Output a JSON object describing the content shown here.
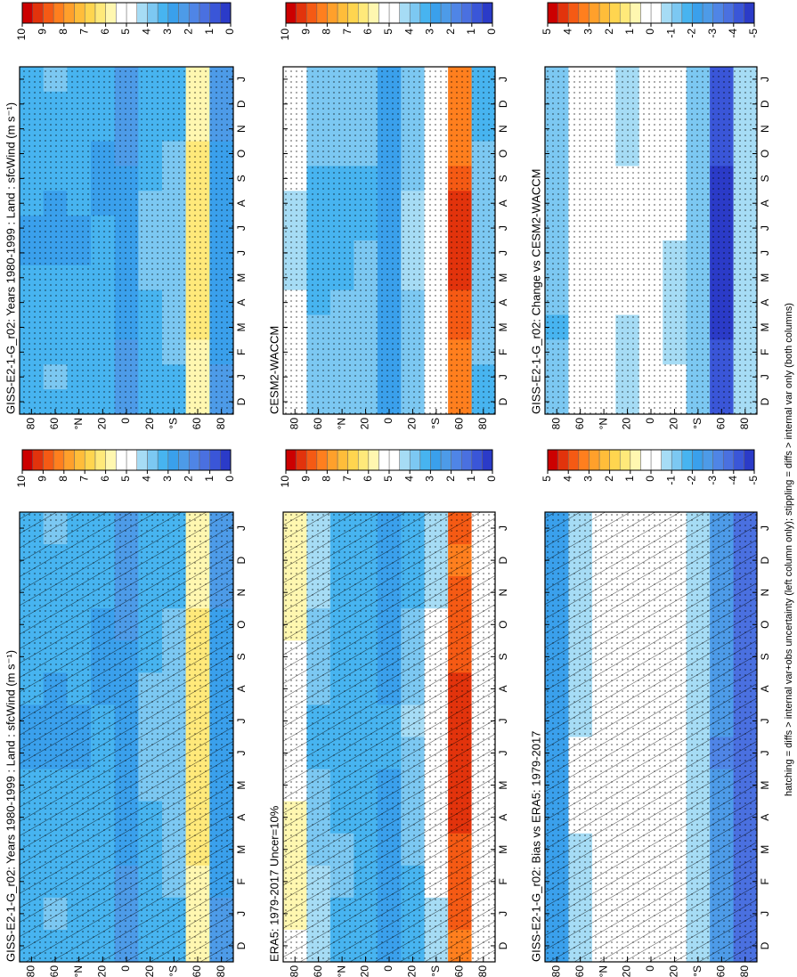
{
  "footnote": "hatching = diffs > internal var+obs uncertainty (left column only); stippling = diffs > internal var only (both columns)",
  "palette": [
    "#2b3bc8",
    "#3a56d8",
    "#4a70e0",
    "#4f85e6",
    "#4d9be8",
    "#3aa0ec",
    "#47b4f0",
    "#7cc8f2",
    "#a6dcf5",
    "#ffffff",
    "#ffffff",
    "#fff7b0",
    "#ffe97a",
    "#ffd54f",
    "#ffbd3a",
    "#ffa02b",
    "#ff7f1e",
    "#f55a14",
    "#e2330c",
    "#cc0000"
  ],
  "chart_data": [
    {
      "type": "heatmap",
      "title": "GISS-E2-1-G_r02: Years 1980-1999 : Land : sfcWind (m s⁻¹)",
      "hatch": true,
      "x": [
        "D",
        "J",
        "F",
        "M",
        "A",
        "M",
        "J",
        "J",
        "A",
        "S",
        "O",
        "N",
        "D",
        "J"
      ],
      "y": [
        80,
        60,
        40,
        20,
        0,
        -20,
        -40,
        -60,
        -80
      ],
      "ylim": [
        90,
        -90
      ],
      "yticks": [
        80,
        60,
        {
          "value": 40,
          "label": "°N"
        },
        20,
        0,
        {
          "value": -20,
          "label": "20"
        },
        {
          "value": -40,
          "label": "°S"
        },
        {
          "value": -60,
          "label": "60"
        },
        {
          "value": -80,
          "label": "80"
        }
      ],
      "zlim": [
        0,
        10
      ],
      "zticks": [
        10,
        9,
        8,
        7,
        6,
        5,
        4,
        3,
        2,
        1,
        0
      ],
      "z": [
        [
          3.2,
          3.3,
          3.3,
          3.2,
          3.1,
          3.0,
          2.9,
          2.9,
          3.0,
          3.1,
          3.2,
          3.3,
          3.2,
          3.3
        ],
        [
          3.4,
          3.5,
          3.4,
          3.3,
          3.2,
          3.0,
          2.9,
          2.8,
          2.9,
          3.1,
          3.3,
          3.4,
          3.4,
          3.5
        ],
        [
          3.2,
          3.3,
          3.4,
          3.4,
          3.3,
          3.1,
          2.9,
          2.9,
          3.0,
          3.1,
          3.2,
          3.2,
          3.2,
          3.3
        ],
        [
          3.0,
          3.0,
          3.1,
          3.2,
          3.2,
          3.1,
          3.0,
          3.0,
          2.9,
          2.9,
          2.9,
          3.0,
          3.0,
          3.0
        ],
        [
          2.4,
          2.4,
          2.4,
          2.5,
          2.5,
          2.6,
          2.7,
          2.7,
          2.6,
          2.5,
          2.4,
          2.4,
          2.4,
          2.4
        ],
        [
          3.0,
          3.0,
          3.0,
          3.1,
          3.3,
          3.5,
          3.6,
          3.7,
          3.6,
          3.4,
          3.2,
          3.1,
          3.0,
          3.0
        ],
        [
          3.4,
          3.4,
          3.5,
          3.6,
          3.7,
          3.8,
          3.8,
          3.8,
          3.7,
          3.6,
          3.5,
          3.4,
          3.4,
          3.4
        ],
        [
          5.8,
          5.8,
          5.9,
          6.0,
          6.1,
          6.2,
          6.2,
          6.3,
          6.2,
          6.1,
          6.0,
          5.9,
          5.8,
          5.8
        ],
        [
          2.4,
          2.4,
          2.5,
          2.5,
          2.6,
          2.6,
          2.6,
          2.6,
          2.6,
          2.5,
          2.5,
          2.4,
          2.4,
          2.4
        ]
      ]
    },
    {
      "type": "heatmap",
      "title": "ERA5: 1979-2017 Uncer=10%",
      "hatch": true,
      "x": [
        "D",
        "J",
        "F",
        "M",
        "A",
        "M",
        "J",
        "J",
        "A",
        "S",
        "O",
        "N",
        "D",
        "J"
      ],
      "y": [
        80,
        60,
        40,
        20,
        0,
        -20,
        -40,
        -60,
        -80
      ],
      "ylim": [
        90,
        -90
      ],
      "yticks": [
        80,
        60,
        {
          "value": 40,
          "label": "°N"
        },
        20,
        0,
        {
          "value": -20,
          "label": "20"
        },
        {
          "value": -40,
          "label": "°S"
        },
        {
          "value": -60,
          "label": "60"
        },
        {
          "value": -80,
          "label": "80"
        }
      ],
      "zlim": [
        0,
        10
      ],
      "zticks": [
        10,
        9,
        8,
        7,
        6,
        5,
        4,
        3,
        2,
        1,
        0
      ],
      "z": [
        [
          5.4,
          5.5,
          5.6,
          5.6,
          5.5,
          5.2,
          5.0,
          5.0,
          5.2,
          5.4,
          5.6,
          5.7,
          5.6,
          5.5
        ],
        [
          4.0,
          4.1,
          4.0,
          3.9,
          3.7,
          3.5,
          3.4,
          3.4,
          3.5,
          3.7,
          3.9,
          4.0,
          4.0,
          4.1
        ],
        [
          3.3,
          3.4,
          3.5,
          3.5,
          3.4,
          3.2,
          3.1,
          3.1,
          3.1,
          3.2,
          3.3,
          3.3,
          3.3,
          3.4
        ],
        [
          3.3,
          3.3,
          3.4,
          3.4,
          3.3,
          3.2,
          3.1,
          3.1,
          3.0,
          3.1,
          3.2,
          3.3,
          3.3,
          3.3
        ],
        [
          2.7,
          2.7,
          2.8,
          2.8,
          2.8,
          2.9,
          3.0,
          3.0,
          2.9,
          2.8,
          2.7,
          2.7,
          2.7,
          2.7
        ],
        [
          3.3,
          3.3,
          3.4,
          3.5,
          3.6,
          3.8,
          3.9,
          4.0,
          3.9,
          3.7,
          3.5,
          3.4,
          3.3,
          3.3
        ],
        [
          4.4,
          4.4,
          4.5,
          4.6,
          4.7,
          4.8,
          4.8,
          4.8,
          4.7,
          4.6,
          4.5,
          4.4,
          4.4,
          4.4
        ],
        [
          8.4,
          8.5,
          8.6,
          8.8,
          9.0,
          9.2,
          9.3,
          9.3,
          9.1,
          8.9,
          8.7,
          8.5,
          8.4,
          8.5
        ],
        [
          5.2,
          5.2,
          5.3,
          5.3,
          5.4,
          5.4,
          5.4,
          5.4,
          5.3,
          5.3,
          5.2,
          5.2,
          5.2,
          5.2
        ]
      ]
    },
    {
      "type": "heatmap",
      "title": "GISS-E2-1-G_r02: Bias vs ERA5: 1979-2017",
      "hatch": true,
      "x": [
        "D",
        "J",
        "F",
        "M",
        "A",
        "M",
        "J",
        "J",
        "A",
        "S",
        "O",
        "N",
        "D",
        "J"
      ],
      "y": [
        80,
        60,
        40,
        20,
        0,
        -20,
        -40,
        -60,
        -80
      ],
      "ylim": [
        90,
        -90
      ],
      "yticks": [
        80,
        60,
        {
          "value": 40,
          "label": "°N"
        },
        20,
        0,
        {
          "value": -20,
          "label": "20"
        },
        {
          "value": -40,
          "label": "°S"
        },
        {
          "value": -60,
          "label": "60"
        },
        {
          "value": -80,
          "label": "80"
        }
      ],
      "zlim": [
        -5,
        5
      ],
      "zticks": [
        5,
        4,
        3,
        2,
        1,
        0,
        -1,
        -2,
        -3,
        -4,
        -5
      ],
      "z": [
        [
          -2.2,
          -2.2,
          -2.3,
          -2.4,
          -2.4,
          -2.2,
          -2.1,
          -2.1,
          -2.2,
          -2.3,
          -2.4,
          -2.4,
          -2.4,
          -2.2
        ],
        [
          -0.6,
          -0.6,
          -0.6,
          -0.6,
          -0.5,
          -0.5,
          -0.5,
          -0.6,
          -0.6,
          -0.6,
          -0.6,
          -0.6,
          -0.6,
          -0.6
        ],
        [
          -0.1,
          -0.1,
          -0.1,
          -0.1,
          -0.1,
          -0.1,
          -0.2,
          -0.2,
          -0.1,
          -0.1,
          0.0,
          -0.1,
          -0.1,
          -0.1
        ],
        [
          -0.3,
          -0.3,
          -0.3,
          -0.2,
          -0.1,
          -0.1,
          -0.1,
          -0.1,
          -0.1,
          -0.2,
          -0.3,
          -0.3,
          -0.3,
          -0.3
        ],
        [
          -0.3,
          -0.3,
          -0.4,
          -0.3,
          -0.3,
          -0.3,
          -0.3,
          -0.3,
          -0.3,
          -0.3,
          -0.3,
          -0.3,
          -0.3,
          -0.3
        ],
        [
          -0.3,
          -0.3,
          -0.4,
          -0.4,
          -0.3,
          -0.3,
          -0.3,
          -0.3,
          -0.3,
          -0.3,
          -0.3,
          -0.3,
          -0.3,
          -0.3
        ],
        [
          -1.0,
          -1.0,
          -1.0,
          -1.0,
          -1.0,
          -1.0,
          -1.0,
          -1.0,
          -1.0,
          -1.0,
          -1.0,
          -1.0,
          -1.0,
          -1.0
        ],
        [
          -2.6,
          -2.7,
          -2.7,
          -2.8,
          -2.9,
          -3.0,
          -3.1,
          -3.0,
          -2.9,
          -2.8,
          -2.7,
          -2.6,
          -2.6,
          -2.7
        ],
        [
          -3.8,
          -3.8,
          -3.9,
          -3.9,
          -4.0,
          -4.0,
          -4.0,
          -4.0,
          -3.9,
          -3.9,
          -3.8,
          -3.8,
          -3.8,
          -3.8
        ]
      ]
    },
    {
      "type": "heatmap",
      "title": "GISS-E2-1-G_r02: Years 1980-1999 : Land : sfcWind (m s⁻¹)",
      "hatch": false,
      "x": [
        "D",
        "J",
        "F",
        "M",
        "A",
        "M",
        "J",
        "J",
        "A",
        "S",
        "O",
        "N",
        "D",
        "J"
      ],
      "y": [
        80,
        60,
        40,
        20,
        0,
        -20,
        -40,
        -60,
        -80
      ],
      "ylim": [
        90,
        -90
      ],
      "yticks": [
        80,
        60,
        {
          "value": 40,
          "label": "°N"
        },
        20,
        0,
        {
          "value": -20,
          "label": "20"
        },
        {
          "value": -40,
          "label": "°S"
        },
        {
          "value": -60,
          "label": "60"
        },
        {
          "value": -80,
          "label": "80"
        }
      ],
      "zlim": [
        0,
        10
      ],
      "zticks": [
        10,
        9,
        8,
        7,
        6,
        5,
        4,
        3,
        2,
        1,
        0
      ],
      "z": [
        [
          3.2,
          3.3,
          3.3,
          3.2,
          3.1,
          3.0,
          2.9,
          2.9,
          3.0,
          3.1,
          3.2,
          3.3,
          3.2,
          3.3
        ],
        [
          3.4,
          3.5,
          3.4,
          3.3,
          3.2,
          3.0,
          2.9,
          2.8,
          2.9,
          3.1,
          3.3,
          3.4,
          3.4,
          3.5
        ],
        [
          3.2,
          3.3,
          3.4,
          3.4,
          3.3,
          3.1,
          2.9,
          2.9,
          3.0,
          3.1,
          3.2,
          3.2,
          3.2,
          3.3
        ],
        [
          3.0,
          3.0,
          3.1,
          3.2,
          3.2,
          3.1,
          3.0,
          3.0,
          2.9,
          2.9,
          2.9,
          3.0,
          3.0,
          3.0
        ],
        [
          2.4,
          2.4,
          2.4,
          2.5,
          2.5,
          2.6,
          2.7,
          2.7,
          2.6,
          2.5,
          2.4,
          2.4,
          2.4,
          2.4
        ],
        [
          3.0,
          3.0,
          3.0,
          3.1,
          3.3,
          3.5,
          3.6,
          3.7,
          3.6,
          3.4,
          3.2,
          3.1,
          3.0,
          3.0
        ],
        [
          3.4,
          3.4,
          3.5,
          3.6,
          3.7,
          3.8,
          3.8,
          3.8,
          3.7,
          3.6,
          3.5,
          3.4,
          3.4,
          3.4
        ],
        [
          5.8,
          5.8,
          5.9,
          6.0,
          6.1,
          6.2,
          6.2,
          6.3,
          6.2,
          6.1,
          6.0,
          5.9,
          5.8,
          5.8
        ],
        [
          2.4,
          2.4,
          2.5,
          2.5,
          2.6,
          2.6,
          2.6,
          2.6,
          2.6,
          2.5,
          2.5,
          2.4,
          2.4,
          2.4
        ]
      ]
    },
    {
      "type": "heatmap",
      "title": "CESM2-WACCM",
      "hatch": false,
      "x": [
        "D",
        "J",
        "F",
        "M",
        "A",
        "M",
        "J",
        "J",
        "A",
        "S",
        "O",
        "N",
        "D",
        "J"
      ],
      "y": [
        80,
        60,
        40,
        20,
        0,
        -20,
        -40,
        -60,
        -80
      ],
      "ylim": [
        90,
        -90
      ],
      "yticks": [
        80,
        60,
        {
          "value": 40,
          "label": "°N"
        },
        20,
        0,
        {
          "value": -20,
          "label": "20"
        },
        {
          "value": -40,
          "label": "°S"
        },
        {
          "value": -60,
          "label": "60"
        },
        {
          "value": -80,
          "label": "80"
        }
      ],
      "zlim": [
        0,
        10
      ],
      "zticks": [
        10,
        9,
        8,
        7,
        6,
        5,
        4,
        3,
        2,
        1,
        0
      ],
      "z": [
        [
          4.6,
          4.7,
          4.8,
          4.8,
          4.6,
          4.3,
          4.1,
          4.1,
          4.3,
          4.5,
          4.7,
          4.8,
          4.7,
          4.6
        ],
        [
          3.7,
          3.8,
          3.7,
          3.6,
          3.4,
          3.2,
          3.1,
          3.1,
          3.2,
          3.4,
          3.6,
          3.7,
          3.7,
          3.8
        ],
        [
          3.6,
          3.7,
          3.8,
          3.8,
          3.7,
          3.4,
          3.2,
          3.2,
          3.3,
          3.4,
          3.5,
          3.6,
          3.6,
          3.7
        ],
        [
          3.6,
          3.6,
          3.7,
          3.8,
          3.7,
          3.6,
          3.5,
          3.4,
          3.3,
          3.4,
          3.5,
          3.6,
          3.6,
          3.6
        ],
        [
          2.6,
          2.6,
          2.6,
          2.7,
          2.7,
          2.8,
          2.9,
          2.9,
          2.8,
          2.7,
          2.6,
          2.6,
          2.6,
          2.6
        ],
        [
          3.5,
          3.5,
          3.6,
          3.7,
          3.9,
          4.1,
          4.2,
          4.2,
          4.1,
          3.9,
          3.7,
          3.6,
          3.5,
          3.5
        ],
        [
          4.6,
          4.6,
          4.7,
          4.8,
          4.9,
          5.0,
          5.0,
          5.0,
          4.9,
          4.8,
          4.7,
          4.6,
          4.6,
          4.6
        ],
        [
          8.0,
          8.1,
          8.3,
          8.6,
          8.9,
          9.1,
          9.2,
          9.2,
          9.0,
          8.7,
          8.4,
          8.2,
          8.0,
          8.1
        ],
        [
          3.4,
          3.4,
          3.5,
          3.5,
          3.6,
          3.6,
          3.6,
          3.6,
          3.6,
          3.5,
          3.5,
          3.4,
          3.4,
          3.4
        ]
      ]
    },
    {
      "type": "heatmap",
      "title": "GISS-E2-1-G_r02: Change vs CESM2-WACCM",
      "hatch": false,
      "x": [
        "D",
        "J",
        "F",
        "M",
        "A",
        "M",
        "J",
        "J",
        "A",
        "S",
        "O",
        "N",
        "D",
        "J"
      ],
      "y": [
        80,
        60,
        40,
        20,
        0,
        -20,
        -40,
        -60,
        -80
      ],
      "ylim": [
        90,
        -90
      ],
      "yticks": [
        80,
        60,
        {
          "value": 40,
          "label": "°N"
        },
        20,
        0,
        {
          "value": -20,
          "label": "20"
        },
        {
          "value": -40,
          "label": "°S"
        },
        {
          "value": -60,
          "label": "60"
        },
        {
          "value": -80,
          "label": "80"
        }
      ],
      "zlim": [
        -5,
        5
      ],
      "zticks": [
        5,
        4,
        3,
        2,
        1,
        0,
        -1,
        -2,
        -3,
        -4,
        -5
      ],
      "z": [
        [
          -1.4,
          -1.4,
          -1.5,
          -1.6,
          -1.5,
          -1.3,
          -1.2,
          -1.2,
          -1.3,
          -1.4,
          -1.5,
          -1.5,
          -1.5,
          -1.3
        ],
        [
          -0.3,
          -0.3,
          -0.3,
          -0.3,
          -0.2,
          -0.2,
          -0.2,
          -0.3,
          -0.3,
          -0.3,
          -0.3,
          -0.3,
          -0.3,
          -0.3
        ],
        [
          -0.4,
          -0.4,
          -0.4,
          -0.4,
          -0.4,
          -0.3,
          -0.3,
          -0.3,
          -0.3,
          -0.3,
          -0.3,
          -0.4,
          -0.4,
          -0.4
        ],
        [
          -0.6,
          -0.6,
          -0.6,
          -0.6,
          -0.5,
          -0.5,
          -0.5,
          -0.4,
          -0.4,
          -0.5,
          -0.6,
          -0.6,
          -0.6,
          -0.6
        ],
        [
          -0.2,
          -0.2,
          -0.2,
          -0.2,
          -0.2,
          -0.2,
          -0.2,
          -0.2,
          -0.2,
          -0.2,
          -0.2,
          -0.2,
          -0.2,
          -0.2
        ],
        [
          -0.5,
          -0.5,
          -0.6,
          -0.6,
          -0.6,
          -0.6,
          -0.6,
          -0.5,
          -0.5,
          -0.5,
          -0.5,
          -0.5,
          -0.5,
          -0.5
        ],
        [
          -1.2,
          -1.2,
          -1.2,
          -1.2,
          -1.2,
          -1.2,
          -1.2,
          -1.2,
          -1.2,
          -1.2,
          -1.2,
          -1.2,
          -1.2,
          -1.2
        ],
        [
          -4.2,
          -4.3,
          -4.4,
          -4.6,
          -4.8,
          -4.9,
          -4.9,
          -4.9,
          -4.8,
          -4.6,
          -4.4,
          -4.3,
          -4.2,
          -4.3
        ],
        [
          -1.0,
          -1.0,
          -1.0,
          -1.0,
          -1.0,
          -1.0,
          -1.0,
          -1.0,
          -1.0,
          -1.0,
          -1.0,
          -1.0,
          -1.0,
          -1.0
        ]
      ]
    }
  ]
}
